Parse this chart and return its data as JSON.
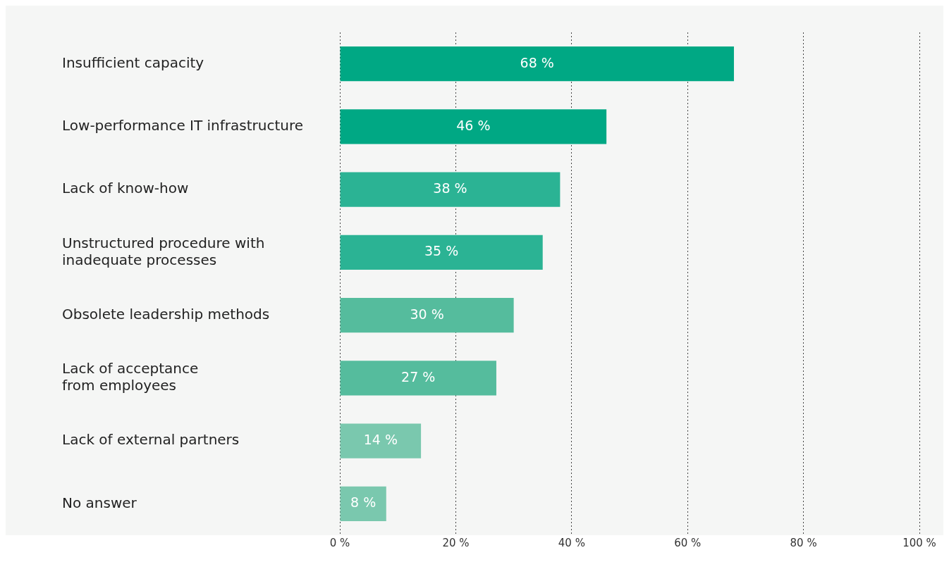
{
  "chart_data": {
    "type": "bar",
    "orientation": "horizontal",
    "categories": [
      "Insufficient capacity",
      "Low-performance IT infrastructure",
      "Lack of know-how",
      "Unstructured procedure with\ninadequate processes",
      "Obsolete leadership methods",
      "Lack of acceptance\nfrom employees",
      "Lack of external partners",
      "No answer"
    ],
    "values": [
      68,
      46,
      38,
      35,
      30,
      27,
      14,
      8
    ],
    "colors": [
      "#00a884",
      "#00a884",
      "#2bb394",
      "#2bb394",
      "#55bc9d",
      "#55bc9d",
      "#7ac8ae",
      "#7ac8ae"
    ],
    "value_labels": [
      "68 %",
      "46 %",
      "38 %",
      "35 %",
      "30 %",
      "27 %",
      "14 %",
      "8 %"
    ],
    "xlim": [
      0,
      100
    ],
    "xticks": [
      {
        "value": 0,
        "label": "0 %"
      },
      {
        "value": 20,
        "label": "20 %"
      },
      {
        "value": 40,
        "label": "40 %"
      },
      {
        "value": 60,
        "label": "60 %"
      },
      {
        "value": 80,
        "label": "80 %"
      },
      {
        "value": 100,
        "label": "100 %"
      }
    ],
    "grid": "x",
    "legend": false
  }
}
